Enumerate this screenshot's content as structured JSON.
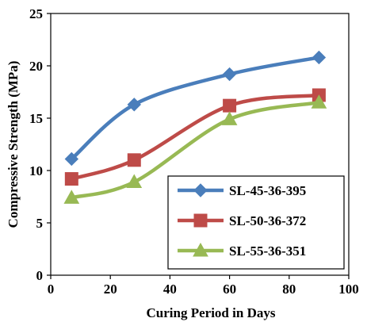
{
  "chart_data": {
    "type": "line",
    "xlabel": "Curing Period in Days",
    "ylabel": "Compressive Strength (MPa)",
    "xlim": [
      0,
      100
    ],
    "ylim": [
      0,
      25
    ],
    "xticks": [
      0,
      20,
      40,
      60,
      80,
      100
    ],
    "yticks": [
      0,
      5,
      10,
      15,
      20,
      25
    ],
    "x": [
      7,
      28,
      60,
      90
    ],
    "grid": false,
    "legend_position": "bottom-right",
    "series": [
      {
        "name": "SL-45-36-395",
        "values": [
          11.1,
          16.3,
          19.2,
          20.8
        ],
        "color": "#4a7ebb",
        "marker": "diamond"
      },
      {
        "name": "SL-50-36-372",
        "values": [
          9.2,
          11.0,
          16.2,
          17.2
        ],
        "color": "#be4b48",
        "marker": "square"
      },
      {
        "name": "SL-55-36-351",
        "values": [
          7.4,
          8.9,
          14.9,
          16.5
        ],
        "color": "#98b954",
        "marker": "triangle"
      }
    ]
  }
}
